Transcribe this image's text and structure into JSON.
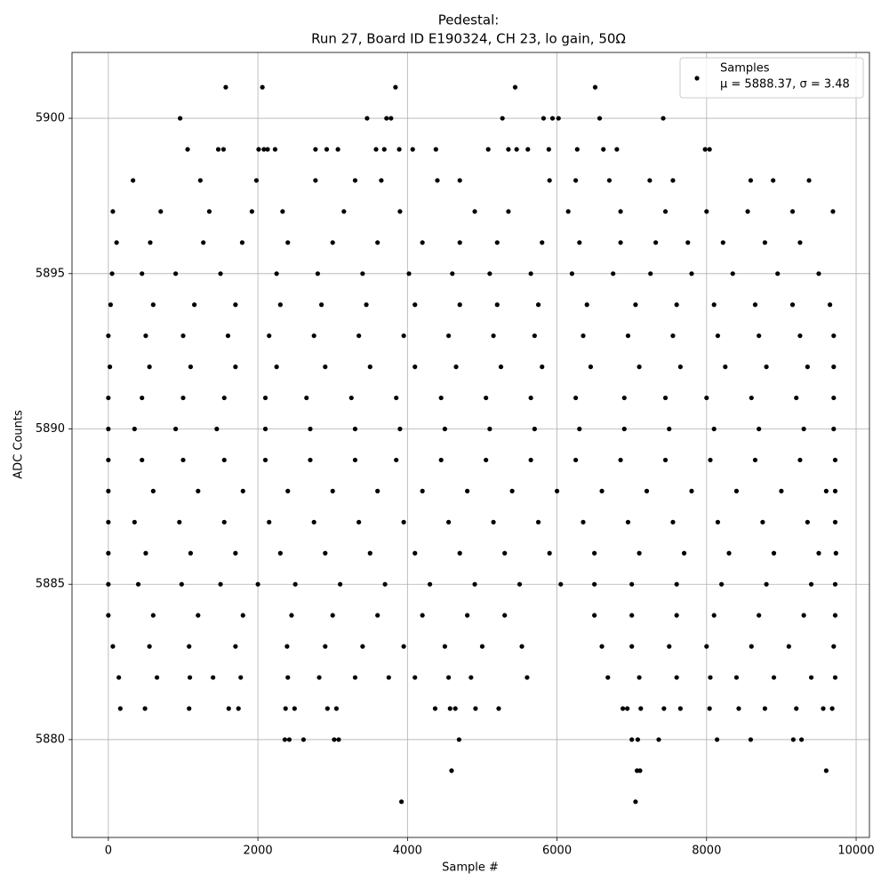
{
  "chart_data": {
    "type": "scatter",
    "title": "Pedestal:",
    "subtitle": "Run 27, Board ID E190324, CH 23, lo gain, 50Ω",
    "x_label": "Sample #",
    "y_label": "ADC Counts",
    "xlim": [
      -486,
      10178
    ],
    "ylim": [
      5876.85,
      5902.12
    ],
    "xticks": [
      0,
      2000,
      4000,
      6000,
      8000,
      10000
    ],
    "yticks": [
      5880,
      5885,
      5890,
      5895,
      5900
    ],
    "grid": true,
    "legend": "upper right",
    "series": [
      {
        "name": "Samples",
        "stats_label": "μ = 5888.37, σ = 3.48",
        "color": "#000000",
        "x": [
          1570,
          2060,
          3840,
          5440,
          6510,
          960,
          3460,
          3720,
          3780,
          5270,
          5820,
          5940,
          6020,
          6570,
          7420,
          1060,
          1470,
          1540,
          2010,
          2080,
          2130,
          2230,
          2770,
          2920,
          3070,
          3580,
          3690,
          3890,
          4070,
          4380,
          5080,
          5350,
          5460,
          5610,
          5890,
          6270,
          6620,
          6800,
          7980,
          8040,
          330,
          1230,
          1980,
          2770,
          3300,
          3650,
          4400,
          4700,
          5900,
          6250,
          6700,
          7240,
          7550,
          8590,
          8890,
          9370,
          60,
          700,
          1350,
          1920,
          2330,
          3150,
          3900,
          4900,
          5350,
          6150,
          6850,
          7450,
          8000,
          8550,
          9150,
          9690,
          110,
          560,
          1270,
          1790,
          2400,
          3000,
          3600,
          4200,
          4700,
          5200,
          5800,
          6300,
          6850,
          7320,
          7750,
          8220,
          8780,
          9250,
          50,
          450,
          900,
          1500,
          2250,
          2800,
          3400,
          4020,
          4600,
          5100,
          5650,
          6200,
          6750,
          7250,
          7800,
          8350,
          8950,
          9500,
          30,
          600,
          1150,
          1700,
          2300,
          2850,
          3450,
          4100,
          4700,
          5200,
          5750,
          6400,
          7050,
          7600,
          8100,
          8650,
          9150,
          9650,
          0,
          500,
          1000,
          1600,
          2150,
          2750,
          3350,
          3950,
          4550,
          5150,
          5700,
          6350,
          6950,
          7550,
          8150,
          8700,
          9250,
          9700,
          20,
          550,
          1100,
          1700,
          2250,
          2900,
          3500,
          4100,
          4650,
          5250,
          5800,
          6450,
          7100,
          7650,
          8250,
          8800,
          9350,
          9700,
          0,
          450,
          1000,
          1550,
          2100,
          2650,
          3250,
          3850,
          4450,
          5050,
          5650,
          6250,
          6900,
          7450,
          8000,
          8600,
          9200,
          9700,
          0,
          350,
          900,
          1450,
          2100,
          2700,
          3300,
          3900,
          4500,
          5100,
          5700,
          6300,
          6900,
          7500,
          8100,
          8700,
          9300,
          9700,
          0,
          450,
          1000,
          1550,
          2100,
          2700,
          3300,
          3850,
          4450,
          5050,
          5650,
          6250,
          6850,
          7450,
          8050,
          8650,
          9250,
          9720,
          0,
          600,
          1200,
          1800,
          2400,
          3000,
          3600,
          4200,
          4800,
          5400,
          6000,
          6600,
          7200,
          7800,
          8400,
          9000,
          9600,
          9720,
          0,
          350,
          950,
          1550,
          2150,
          2750,
          3350,
          3950,
          4550,
          5150,
          5750,
          6350,
          6950,
          7550,
          8150,
          8750,
          9350,
          9720,
          0,
          500,
          1100,
          1700,
          2300,
          2900,
          3500,
          4100,
          4700,
          5300,
          5900,
          6500,
          7100,
          7700,
          8300,
          8900,
          9500,
          9730,
          0,
          400,
          980,
          1500,
          2000,
          2500,
          3100,
          3700,
          4300,
          4900,
          5500,
          6050,
          6500,
          7000,
          7600,
          8200,
          8800,
          9400,
          9720,
          0,
          600,
          1200,
          1800,
          2450,
          3000,
          3600,
          4200,
          4800,
          5300,
          6500,
          7000,
          7600,
          8100,
          8700,
          9300,
          9720,
          60,
          550,
          1080,
          1700,
          2390,
          2900,
          3400,
          3950,
          4500,
          5000,
          5530,
          6600,
          7000,
          7500,
          8000,
          8600,
          9100,
          9700,
          140,
          650,
          1090,
          1400,
          1770,
          2400,
          2820,
          3300,
          3750,
          4100,
          4550,
          4850,
          5600,
          6680,
          7100,
          7600,
          8050,
          8400,
          8900,
          9400,
          9720,
          160,
          490,
          1080,
          1610,
          1740,
          2370,
          2490,
          2930,
          3050,
          4370,
          4570,
          4640,
          4910,
          5220,
          6880,
          6940,
          7120,
          7430,
          7650,
          8040,
          8430,
          8780,
          9200,
          9560,
          9680,
          2360,
          2420,
          2610,
          3020,
          3080,
          4690,
          7000,
          7080,
          7360,
          8140,
          8590,
          9160,
          9270,
          4590,
          7070,
          7110,
          9600,
          3920,
          7050
        ],
        "values": [
          5901,
          5901,
          5901,
          5901,
          5901,
          5900,
          5900,
          5900,
          5900,
          5900,
          5900,
          5900,
          5900,
          5900,
          5900,
          5899,
          5899,
          5899,
          5899,
          5899,
          5899,
          5899,
          5899,
          5899,
          5899,
          5899,
          5899,
          5899,
          5899,
          5899,
          5899,
          5899,
          5899,
          5899,
          5899,
          5899,
          5899,
          5899,
          5899,
          5899,
          5898,
          5898,
          5898,
          5898,
          5898,
          5898,
          5898,
          5898,
          5898,
          5898,
          5898,
          5898,
          5898,
          5898,
          5898,
          5898,
          5897,
          5897,
          5897,
          5897,
          5897,
          5897,
          5897,
          5897,
          5897,
          5897,
          5897,
          5897,
          5897,
          5897,
          5897,
          5897,
          5896,
          5896,
          5896,
          5896,
          5896,
          5896,
          5896,
          5896,
          5896,
          5896,
          5896,
          5896,
          5896,
          5896,
          5896,
          5896,
          5896,
          5896,
          5895,
          5895,
          5895,
          5895,
          5895,
          5895,
          5895,
          5895,
          5895,
          5895,
          5895,
          5895,
          5895,
          5895,
          5895,
          5895,
          5895,
          5895,
          5894,
          5894,
          5894,
          5894,
          5894,
          5894,
          5894,
          5894,
          5894,
          5894,
          5894,
          5894,
          5894,
          5894,
          5894,
          5894,
          5894,
          5894,
          5893,
          5893,
          5893,
          5893,
          5893,
          5893,
          5893,
          5893,
          5893,
          5893,
          5893,
          5893,
          5893,
          5893,
          5893,
          5893,
          5893,
          5893,
          5892,
          5892,
          5892,
          5892,
          5892,
          5892,
          5892,
          5892,
          5892,
          5892,
          5892,
          5892,
          5892,
          5892,
          5892,
          5892,
          5892,
          5892,
          5891,
          5891,
          5891,
          5891,
          5891,
          5891,
          5891,
          5891,
          5891,
          5891,
          5891,
          5891,
          5891,
          5891,
          5891,
          5891,
          5891,
          5891,
          5890,
          5890,
          5890,
          5890,
          5890,
          5890,
          5890,
          5890,
          5890,
          5890,
          5890,
          5890,
          5890,
          5890,
          5890,
          5890,
          5890,
          5890,
          5889,
          5889,
          5889,
          5889,
          5889,
          5889,
          5889,
          5889,
          5889,
          5889,
          5889,
          5889,
          5889,
          5889,
          5889,
          5889,
          5889,
          5889,
          5888,
          5888,
          5888,
          5888,
          5888,
          5888,
          5888,
          5888,
          5888,
          5888,
          5888,
          5888,
          5888,
          5888,
          5888,
          5888,
          5888,
          5888,
          5887,
          5887,
          5887,
          5887,
          5887,
          5887,
          5887,
          5887,
          5887,
          5887,
          5887,
          5887,
          5887,
          5887,
          5887,
          5887,
          5887,
          5887,
          5886,
          5886,
          5886,
          5886,
          5886,
          5886,
          5886,
          5886,
          5886,
          5886,
          5886,
          5886,
          5886,
          5886,
          5886,
          5886,
          5886,
          5886,
          5885,
          5885,
          5885,
          5885,
          5885,
          5885,
          5885,
          5885,
          5885,
          5885,
          5885,
          5885,
          5885,
          5885,
          5885,
          5885,
          5885,
          5885,
          5885,
          5884,
          5884,
          5884,
          5884,
          5884,
          5884,
          5884,
          5884,
          5884,
          5884,
          5884,
          5884,
          5884,
          5884,
          5884,
          5884,
          5884,
          5883,
          5883,
          5883,
          5883,
          5883,
          5883,
          5883,
          5883,
          5883,
          5883,
          5883,
          5883,
          5883,
          5883,
          5883,
          5883,
          5883,
          5883,
          5882,
          5882,
          5882,
          5882,
          5882,
          5882,
          5882,
          5882,
          5882,
          5882,
          5882,
          5882,
          5882,
          5882,
          5882,
          5882,
          5882,
          5882,
          5882,
          5882,
          5882,
          5881,
          5881,
          5881,
          5881,
          5881,
          5881,
          5881,
          5881,
          5881,
          5881,
          5881,
          5881,
          5881,
          5881,
          5881,
          5881,
          5881,
          5881,
          5881,
          5881,
          5881,
          5881,
          5881,
          5881,
          5881,
          5880,
          5880,
          5880,
          5880,
          5880,
          5880,
          5880,
          5880,
          5880,
          5880,
          5880,
          5880,
          5880,
          5879,
          5879,
          5879,
          5879,
          5878,
          5878
        ]
      }
    ]
  }
}
